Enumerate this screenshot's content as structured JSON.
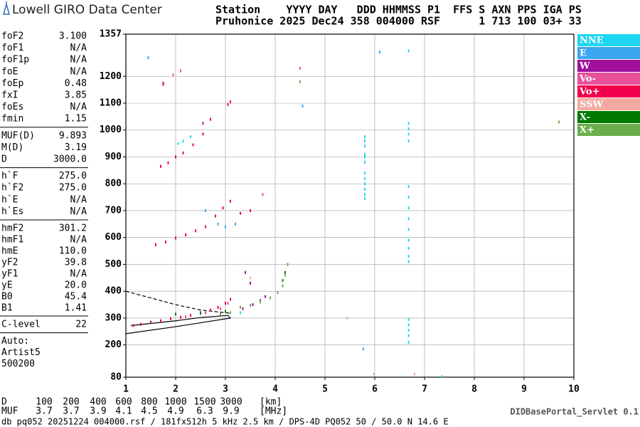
{
  "header": {
    "title": "Lowell GIRO Data Center",
    "line1": "Station    YYYY DAY   DDD HHMMSS P1  FFS S AXN PPS IGA PS",
    "line2": "Pruhonice 2025 Dec24 358 004000 RSF      1 713 100 03+ 33"
  },
  "parameters": [
    [
      [
        "foF2",
        "3.100"
      ],
      [
        "foF1",
        "N/A"
      ],
      [
        "foF1p",
        "N/A"
      ],
      [
        "foE",
        "N/A"
      ],
      [
        "foEp",
        "0.48"
      ],
      [
        "fxI",
        "3.85"
      ],
      [
        "foEs",
        "N/A"
      ],
      [
        "fmin",
        "1.15"
      ]
    ],
    [
      [
        "MUF(D)",
        "9.893"
      ],
      [
        "M(D)",
        "3.19"
      ],
      [
        "D",
        "3000.0"
      ]
    ],
    [
      [
        "h`F",
        "275.0"
      ],
      [
        "h`F2",
        "275.0"
      ],
      [
        "h`E",
        "N/A"
      ],
      [
        "h`Es",
        "N/A"
      ]
    ],
    [
      [
        "hmF2",
        "301.2"
      ],
      [
        "hmF1",
        "N/A"
      ],
      [
        "hmE",
        "110.0"
      ],
      [
        "yF2",
        "39.8"
      ],
      [
        "yF1",
        "N/A"
      ],
      [
        "yE",
        "20.0"
      ],
      [
        "B0",
        "45.4"
      ],
      [
        "B1",
        "1.41"
      ]
    ],
    [
      [
        "C-level",
        "22"
      ]
    ]
  ],
  "notes": [
    "Auto:",
    "Artist5",
    "500200"
  ],
  "muf_table": {
    "rows": [
      [
        "D",
        "100",
        "200",
        "400",
        "600",
        "800",
        "1000",
        "1500",
        "3000",
        "[km]"
      ],
      [
        "MUF",
        "3.7",
        "3.7",
        "3.9",
        "4.1",
        "4.5",
        "4.9",
        "6.3",
        "9.9",
        "[MHz]"
      ]
    ]
  },
  "footer": {
    "servlet": "DIDBasePortal_Servlet 0.1",
    "info": "db pq052 20251224 004000.rsf / 181fx512h 5 kHz 2.5 km / DPS-4D PQ052 50 / 50.0 N 14.6 E"
  },
  "chart_data": {
    "type": "scatter",
    "xlim": [
      1,
      10
    ],
    "xticks": [
      1,
      2,
      3,
      4,
      5,
      6,
      7,
      8,
      9,
      10
    ],
    "ylim": [
      80,
      1357
    ],
    "yticks": [
      80,
      200,
      300,
      400,
      500,
      600,
      700,
      800,
      900,
      1000,
      1100,
      1200,
      1357
    ],
    "grid": true,
    "series": [
      {
        "name": "NNE",
        "color": "#1ed6f0",
        "x": [
          5.8,
          5.8,
          5.8,
          5.8,
          5.8,
          5.8,
          5.8,
          5.8,
          5.8,
          5.8,
          5.8,
          5.8,
          6.68,
          6.68,
          6.68,
          6.68,
          6.68,
          6.68,
          6.68,
          6.68,
          6.68,
          6.68,
          6.68,
          6.68,
          6.68,
          6.68,
          6.68,
          6.68,
          6.68,
          6.68,
          2.05,
          2.15,
          2.3,
          6.68,
          7.35,
          3.3
        ],
        "y": [
          745,
          760,
          780,
          800,
          820,
          840,
          880,
          900,
          910,
          940,
          960,
          975,
          510,
          530,
          560,
          590,
          630,
          670,
          710,
          750,
          790,
          960,
          985,
          1005,
          1025,
          210,
          235,
          255,
          275,
          295,
          950,
          958,
          975,
          1295,
          82,
          320
        ]
      },
      {
        "name": "E",
        "color": "#3aa5f0",
        "x": [
          1.45,
          2.6,
          3.2,
          4.55,
          5.77,
          6.1,
          2.85,
          3.0
        ],
        "y": [
          1270,
          700,
          650,
          1090,
          185,
          1290,
          650,
          640
        ]
      },
      {
        "name": "W",
        "color": "#a0109c",
        "x": [
          3.35,
          3.55,
          3.7,
          3.8,
          3.5,
          3.4,
          1.75,
          2.55
        ],
        "y": [
          335,
          350,
          365,
          380,
          430,
          470,
          1175,
          1025
        ]
      },
      {
        "name": "Vo-",
        "color": "#e8509a",
        "x": [
          2.2,
          2.6,
          2.9,
          3.05,
          3.5,
          3.75,
          4.5,
          1.95,
          2.1
        ],
        "y": [
          305,
          320,
          335,
          355,
          700,
          760,
          1230,
          1205,
          1220
        ]
      },
      {
        "name": "Vo+",
        "color": "#f0004a",
        "x": [
          1.15,
          1.3,
          1.5,
          1.7,
          1.9,
          2.1,
          2.3,
          2.5,
          2.7,
          2.85,
          3.0,
          3.1,
          1.6,
          1.8,
          2.0,
          2.2,
          2.4,
          2.6,
          2.8,
          2.95,
          3.1,
          3.3,
          3.5,
          1.7,
          1.85,
          2.0,
          2.15,
          2.35,
          2.55,
          2.7,
          3.05,
          3.1,
          1.75
        ],
        "y": [
          272,
          277,
          285,
          290,
          298,
          303,
          310,
          318,
          330,
          340,
          355,
          370,
          573,
          583,
          598,
          610,
          625,
          640,
          680,
          710,
          735,
          690,
          700,
          865,
          878,
          900,
          915,
          945,
          985,
          1040,
          1095,
          1105,
          1170
        ]
      },
      {
        "name": "SSW",
        "color": "#f2aaa0",
        "x": [
          5.45,
          5.98,
          6.8,
          3.5
        ],
        "y": [
          300,
          92,
          92,
          450
        ]
      },
      {
        "name": "X-",
        "color": "#007a00",
        "x": [
          2.0,
          2.5,
          3.0,
          4.15,
          4.2
        ],
        "y": [
          315,
          320,
          325,
          440,
          470
        ]
      },
      {
        "name": "X+",
        "color": "#6aae4c",
        "x": [
          3.3,
          3.5,
          3.7,
          3.9,
          4.05,
          4.15,
          4.2,
          4.25,
          3.1,
          2.9,
          4.5,
          9.7
        ],
        "y": [
          340,
          348,
          360,
          375,
          395,
          420,
          460,
          500,
          320,
          315,
          1180,
          1030
        ]
      }
    ],
    "profiles": [
      {
        "dashed": false,
        "x": [
          1.0,
          2.0,
          3.1,
          3.05,
          2.5,
          2.0,
          1.5,
          1.1
        ],
        "y": [
          242,
          268,
          300,
          310,
          302,
          290,
          280,
          272
        ]
      },
      {
        "dashed": true,
        "x": [
          1.0,
          1.5,
          2.0,
          2.5,
          3.1
        ],
        "y": [
          400,
          375,
          350,
          330,
          318
        ]
      }
    ]
  }
}
